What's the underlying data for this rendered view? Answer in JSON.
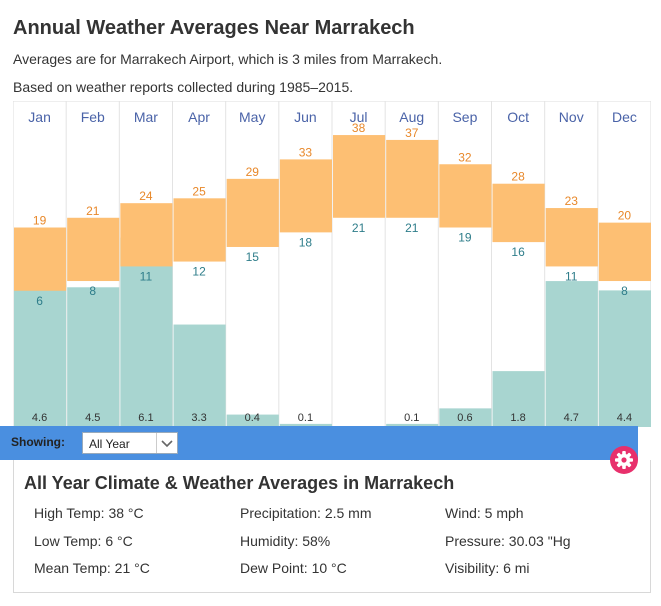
{
  "header": {
    "title": "Annual Weather Averages Near Marrakech",
    "subtitle1": "Averages are for Marrakech Airport, which is 3 miles from Marrakech.",
    "subtitle2": "Based on weather reports collected during 1985–2015."
  },
  "chart_data": {
    "type": "bar",
    "categories": [
      "Jan",
      "Feb",
      "Mar",
      "Apr",
      "May",
      "Jun",
      "Jul",
      "Aug",
      "Sep",
      "Oct",
      "Nov",
      "Dec"
    ],
    "series": [
      {
        "name": "High Temp (°C)",
        "values": [
          19,
          21,
          24,
          25,
          29,
          33,
          38,
          37,
          32,
          28,
          23,
          20
        ]
      },
      {
        "name": "Low Temp (°C)",
        "values": [
          6,
          8,
          11,
          12,
          15,
          18,
          21,
          21,
          19,
          16,
          11,
          8
        ]
      },
      {
        "name": "Precipitation",
        "values": [
          4.6,
          4.5,
          6.1,
          3.3,
          0.4,
          0.1,
          0,
          0.1,
          0.6,
          1.8,
          4.7,
          4.4
        ]
      }
    ],
    "precip_labels": [
      "4.6",
      "4.5",
      "6.1",
      "3.3",
      "0.4",
      "0.1",
      "",
      "0.1",
      "0.6",
      "1.8",
      "4.7",
      "4.4"
    ],
    "temp_ylim": [
      -22,
      45
    ],
    "precip_ylim": [
      0,
      10.5
    ],
    "colors": {
      "temp_range": "#fdbf73",
      "high_label": "#e8882a",
      "low_label": "#2e7d8a",
      "precip": "#a8d5d0",
      "month_label": "#4a63a8"
    }
  },
  "controls": {
    "showing_label": "Showing:",
    "selected_period": "All Year",
    "bar_color": "#4a8fe0",
    "gear_color": "#e8306c"
  },
  "panel": {
    "title": "All Year Climate & Weather Averages in Marrakech",
    "stats": [
      [
        "High Temp: 38 °C",
        "Precipitation: 2.5 mm",
        "Wind: 5 mph"
      ],
      [
        "Low Temp: 6 °C",
        "Humidity: 58%",
        "Pressure: 30.03 \"Hg"
      ],
      [
        "Mean Temp: 21 °C",
        "Dew Point: 10 °C",
        "Visibility: 6 mi"
      ]
    ]
  }
}
